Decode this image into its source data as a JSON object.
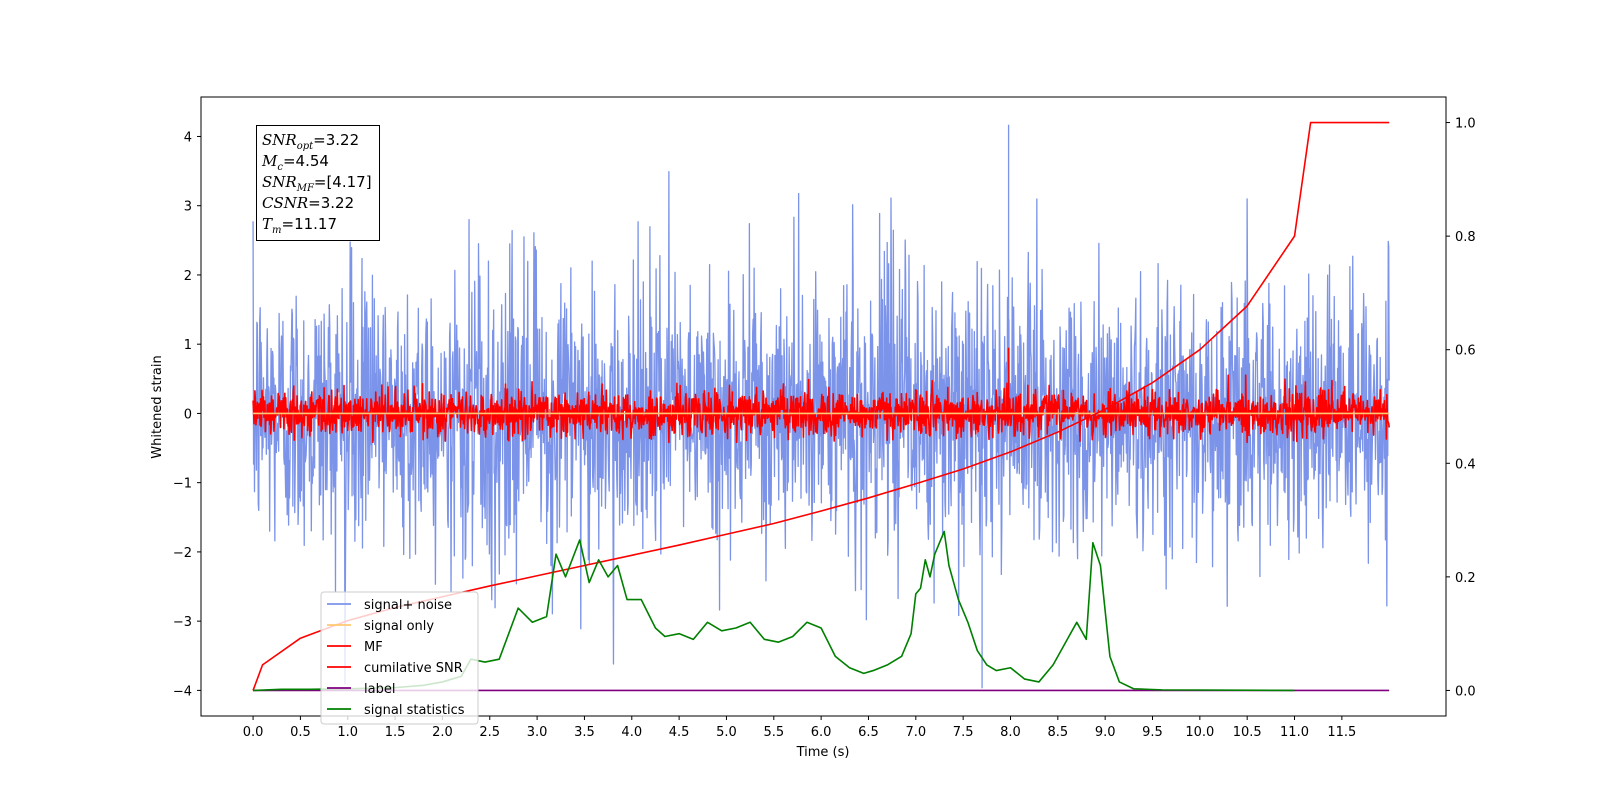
{
  "chart_data": {
    "type": "line",
    "xlabel": "Time (s)",
    "ylabel": "Whitened strain",
    "xlim": [
      -0.55,
      12.6
    ],
    "ylim_left": [
      -4.37,
      4.57
    ],
    "ylim_right": [
      -0.045,
      1.045
    ],
    "x_ticks": [
      0.0,
      0.5,
      1.0,
      1.5,
      2.0,
      2.5,
      3.0,
      3.5,
      4.0,
      4.5,
      5.0,
      5.5,
      6.0,
      6.5,
      7.0,
      7.5,
      8.0,
      8.5,
      9.0,
      9.5,
      10.0,
      10.5,
      11.0,
      11.5
    ],
    "x_tick_labels": [
      "0.0",
      "0.5",
      "1.0",
      "1.5",
      "2.0",
      "2.5",
      "3.0",
      "3.5",
      "4.0",
      "4.5",
      "5.0",
      "5.5",
      "6.0",
      "6.5",
      "7.0",
      "7.5",
      "8.0",
      "8.5",
      "9.0",
      "9.5",
      "10.0",
      "10.5",
      "11.0",
      "11.5"
    ],
    "y_ticks_left": [
      -4,
      -3,
      -2,
      -1,
      0,
      1,
      2,
      3,
      4
    ],
    "y_tick_labels_left": [
      "−4",
      "−3",
      "−2",
      "−1",
      "0",
      "1",
      "2",
      "3",
      "4"
    ],
    "y_ticks_right": [
      0.0,
      0.2,
      0.4,
      0.6,
      0.8,
      1.0
    ],
    "y_tick_labels_right": [
      "0.0",
      "0.2",
      "0.4",
      "0.6",
      "0.8",
      "1.0"
    ],
    "legend_placement": "lower left",
    "series": [
      {
        "name": "signal+ noise",
        "axis": "left",
        "color": "#7b93e8",
        "style": "noise",
        "x_range": [
          0.0,
          12.0
        ],
        "amplitude": 1.0,
        "peak": 4.17,
        "trough": -3.97
      },
      {
        "name": "signal only",
        "axis": "left",
        "color": "#ffc870",
        "style": "flat",
        "x": [
          0.0,
          12.0
        ],
        "y": [
          0.0,
          0.0
        ]
      },
      {
        "name": "MF",
        "axis": "left",
        "color": "#ff0000",
        "style": "noise",
        "x_range": [
          0.0,
          12.0
        ],
        "amplitude": 0.17,
        "peak": 0.95,
        "trough": -0.42
      },
      {
        "name": "cumilative SNR",
        "axis": "right",
        "color": "#ff0000",
        "style": "line",
        "x": [
          0.0,
          0.1,
          0.5,
          1.0,
          1.5,
          2.0,
          2.5,
          3.0,
          3.5,
          4.0,
          4.5,
          5.0,
          5.5,
          6.0,
          6.5,
          7.0,
          7.5,
          8.0,
          8.5,
          9.0,
          9.5,
          10.0,
          10.5,
          11.0,
          11.17,
          12.0
        ],
        "y": [
          0.0,
          0.045,
          0.092,
          0.123,
          0.146,
          0.165,
          0.184,
          0.202,
          0.22,
          0.238,
          0.256,
          0.275,
          0.294,
          0.316,
          0.339,
          0.364,
          0.39,
          0.42,
          0.455,
          0.495,
          0.542,
          0.6,
          0.677,
          0.8,
          1.0,
          1.0
        ]
      },
      {
        "name": "label",
        "axis": "right",
        "color": "#800080",
        "style": "line",
        "x": [
          0.0,
          12.0
        ],
        "y": [
          0.0,
          0.0
        ]
      },
      {
        "name": "signal statistics",
        "axis": "right",
        "color": "#008000",
        "style": "line",
        "x": [
          0.0,
          0.3,
          0.6,
          1.0,
          1.5,
          1.8,
          2.0,
          2.2,
          2.3,
          2.45,
          2.6,
          2.7,
          2.8,
          2.95,
          3.1,
          3.2,
          3.3,
          3.45,
          3.55,
          3.65,
          3.75,
          3.85,
          3.95,
          4.1,
          4.25,
          4.35,
          4.5,
          4.65,
          4.8,
          4.95,
          5.1,
          5.25,
          5.4,
          5.55,
          5.7,
          5.85,
          6.0,
          6.15,
          6.3,
          6.45,
          6.55,
          6.7,
          6.85,
          6.95,
          7.0,
          7.05,
          7.1,
          7.15,
          7.2,
          7.3,
          7.35,
          7.45,
          7.55,
          7.65,
          7.75,
          7.85,
          8.0,
          8.15,
          8.3,
          8.45,
          8.55,
          8.7,
          8.8,
          8.87,
          8.95,
          9.05,
          9.15,
          9.3,
          9.6,
          11.0
        ],
        "y": [
          0.0,
          0.002,
          0.002,
          0.003,
          0.005,
          0.009,
          0.015,
          0.025,
          0.055,
          0.05,
          0.055,
          0.1,
          0.145,
          0.12,
          0.13,
          0.24,
          0.2,
          0.265,
          0.19,
          0.23,
          0.2,
          0.22,
          0.16,
          0.16,
          0.11,
          0.095,
          0.1,
          0.09,
          0.12,
          0.105,
          0.11,
          0.12,
          0.09,
          0.085,
          0.095,
          0.12,
          0.11,
          0.06,
          0.04,
          0.03,
          0.035,
          0.045,
          0.06,
          0.1,
          0.17,
          0.18,
          0.23,
          0.2,
          0.24,
          0.28,
          0.22,
          0.16,
          0.12,
          0.07,
          0.045,
          0.035,
          0.04,
          0.02,
          0.015,
          0.045,
          0.075,
          0.12,
          0.09,
          0.26,
          0.22,
          0.06,
          0.015,
          0.003,
          0.001,
          0.0
        ]
      }
    ],
    "annotation": {
      "snr_opt_value": "=3.22",
      "mc_value": "=4.54",
      "snr_mf_value": "=[4.17]",
      "csnr_value": "=3.22",
      "tm_value": "=11.17"
    }
  }
}
